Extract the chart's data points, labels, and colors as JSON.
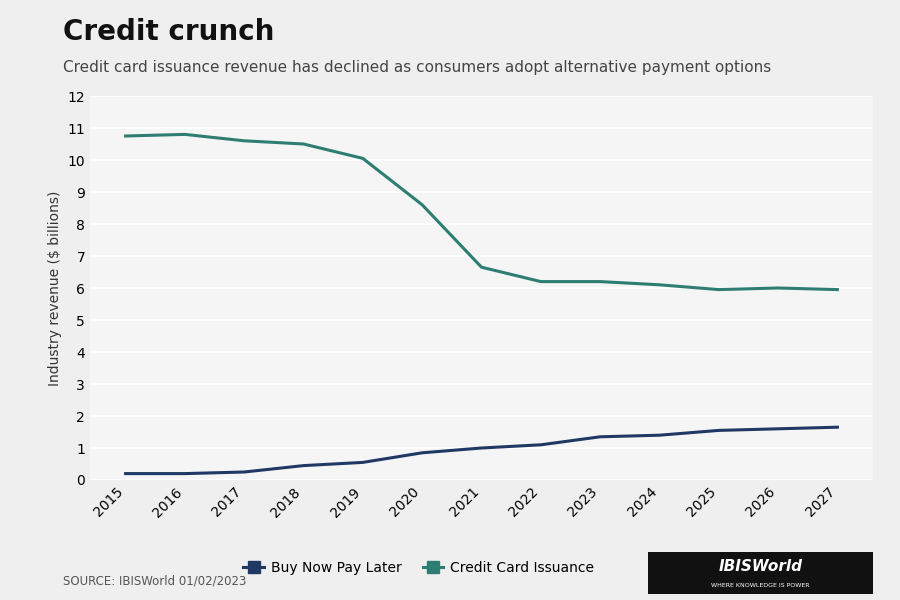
{
  "title": "Credit crunch",
  "subtitle": "Credit card issuance revenue has declined as consumers adopt alternative payment options",
  "ylabel": "Industry revenue ($ billions)",
  "source": "SOURCE: IBISWorld 01/02/2023",
  "years": [
    2015,
    2016,
    2017,
    2018,
    2019,
    2020,
    2021,
    2022,
    2023,
    2024,
    2025,
    2026,
    2027
  ],
  "bnpl": [
    0.2,
    0.2,
    0.25,
    0.45,
    0.55,
    0.85,
    1.0,
    1.1,
    1.35,
    1.4,
    1.55,
    1.6,
    1.65
  ],
  "credit_card": [
    10.75,
    10.8,
    10.6,
    10.5,
    10.05,
    8.6,
    6.65,
    6.2,
    6.2,
    6.1,
    5.95,
    6.0,
    5.95
  ],
  "bnpl_color": "#1f3864",
  "credit_card_color": "#2e7d72",
  "background_color": "#efefef",
  "plot_bg_color": "#f5f5f5",
  "grid_color": "#ffffff",
  "ylim": [
    0,
    12
  ],
  "yticks": [
    0,
    1,
    2,
    3,
    4,
    5,
    6,
    7,
    8,
    9,
    10,
    11,
    12
  ],
  "title_fontsize": 20,
  "subtitle_fontsize": 11,
  "axis_label_fontsize": 10,
  "tick_fontsize": 10,
  "legend_fontsize": 10,
  "line_width": 2.2
}
